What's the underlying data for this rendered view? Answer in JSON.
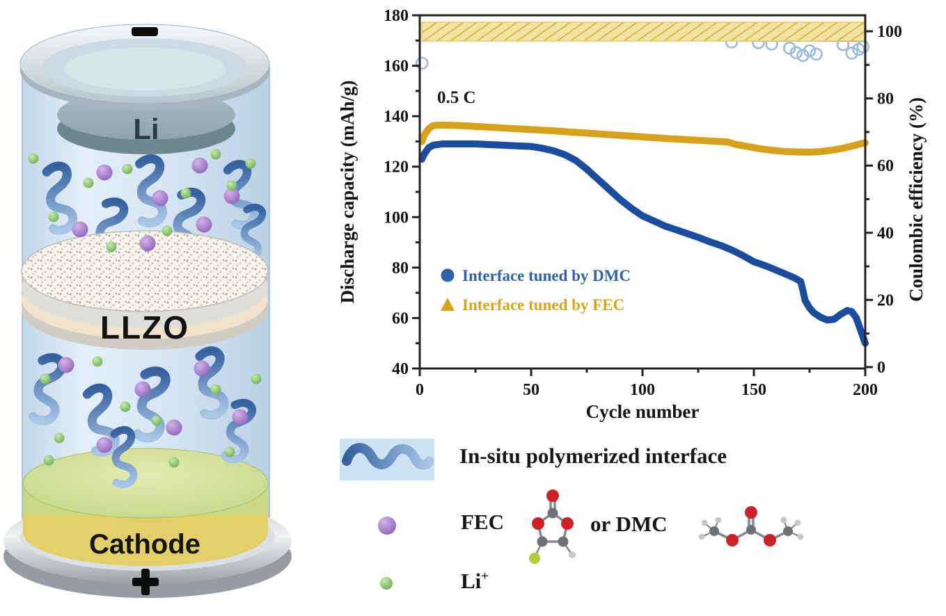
{
  "schematic": {
    "negative_terminal": "−",
    "positive_terminal": "+",
    "anode_label": "Li",
    "electrolyte_label": "LLZO",
    "cathode_label": "Cathode"
  },
  "chart_data": {
    "type": "scatter-line",
    "title": "",
    "xlabel": "Cycle number",
    "ylabel_left": "Discharge capacity (mAh/g)",
    "ylabel_right": "Coulombic efficiency (%)",
    "annotation": "0.5 C",
    "xlim": [
      0,
      200
    ],
    "ylim_left": [
      40,
      180
    ],
    "ylim_right": [
      0,
      100
    ],
    "x_ticks": [
      0,
      50,
      100,
      150,
      200
    ],
    "x_minor_ticks": [
      25,
      75,
      125,
      175
    ],
    "y_ticks_left": [
      40,
      60,
      80,
      100,
      120,
      140,
      160,
      180
    ],
    "y_minor_ticks_left": [
      50,
      70,
      90,
      110,
      130,
      150,
      170
    ],
    "y_ticks_right": [
      0,
      20,
      40,
      60,
      80,
      100
    ],
    "y_minor_ticks_right": [
      10,
      30,
      50,
      70,
      90
    ],
    "grid": false,
    "legend_position": "inside-left-middle",
    "legend": [
      {
        "label": "Interface tuned by DMC",
        "marker": "circle",
        "color": "#2f62a8"
      },
      {
        "label": "Interface tuned by FEC",
        "marker": "triangle",
        "color": "#d7a51c"
      }
    ],
    "series": [
      {
        "name": "Discharge capacity - interface tuned by DMC",
        "axis": "left",
        "color": "#1b4c9e",
        "points": [
          [
            1,
            123
          ],
          [
            2,
            125
          ],
          [
            4,
            127.5
          ],
          [
            6,
            128.5
          ],
          [
            10,
            129
          ],
          [
            15,
            129
          ],
          [
            20,
            129
          ],
          [
            25,
            129
          ],
          [
            30,
            128.8
          ],
          [
            35,
            128.6
          ],
          [
            40,
            128.4
          ],
          [
            45,
            128.2
          ],
          [
            50,
            128
          ],
          [
            55,
            127.3
          ],
          [
            60,
            126.3
          ],
          [
            65,
            124.8
          ],
          [
            70,
            122.5
          ],
          [
            75,
            119
          ],
          [
            80,
            115
          ],
          [
            85,
            111
          ],
          [
            90,
            107
          ],
          [
            95,
            103.5
          ],
          [
            100,
            100.5
          ],
          [
            105,
            98.5
          ],
          [
            110,
            96.5
          ],
          [
            115,
            95
          ],
          [
            120,
            93.5
          ],
          [
            125,
            92
          ],
          [
            130,
            90.3
          ],
          [
            135,
            88.8
          ],
          [
            140,
            87
          ],
          [
            145,
            84.8
          ],
          [
            150,
            82.3
          ],
          [
            155,
            80.8
          ],
          [
            160,
            79
          ],
          [
            164,
            77.5
          ],
          [
            168,
            76
          ],
          [
            171,
            74.5
          ],
          [
            172,
            71
          ],
          [
            173,
            67
          ],
          [
            175,
            64
          ],
          [
            177,
            62
          ],
          [
            180,
            60.3
          ],
          [
            183,
            59.2
          ],
          [
            186,
            59.5
          ],
          [
            189,
            61.5
          ],
          [
            192,
            63
          ],
          [
            194,
            62.5
          ],
          [
            196,
            60
          ],
          [
            198,
            55
          ],
          [
            200,
            50
          ]
        ]
      },
      {
        "name": "Discharge capacity - interface tuned by FEC",
        "axis": "left",
        "color": "#d8a11b",
        "points": [
          [
            1,
            130
          ],
          [
            2,
            132.5
          ],
          [
            4,
            135
          ],
          [
            6,
            136.3
          ],
          [
            10,
            136.5
          ],
          [
            15,
            136.4
          ],
          [
            20,
            136.2
          ],
          [
            30,
            135.7
          ],
          [
            40,
            135.2
          ],
          [
            50,
            134.7
          ],
          [
            60,
            134.2
          ],
          [
            70,
            133.6
          ],
          [
            80,
            133
          ],
          [
            90,
            132.4
          ],
          [
            100,
            131.8
          ],
          [
            110,
            131.2
          ],
          [
            120,
            130.7
          ],
          [
            130,
            130.2
          ],
          [
            138,
            129.8
          ],
          [
            142,
            128.8
          ],
          [
            147,
            128
          ],
          [
            152,
            127.2
          ],
          [
            158,
            126.5
          ],
          [
            164,
            126
          ],
          [
            170,
            125.8
          ],
          [
            175,
            125.7
          ],
          [
            180,
            126
          ],
          [
            185,
            126.5
          ],
          [
            190,
            127.3
          ],
          [
            195,
            128.4
          ],
          [
            200,
            129.5
          ]
        ]
      },
      {
        "name": "Coulombic efficiency - interface tuned by DMC",
        "axis": "right",
        "color": "#49679a",
        "style": "line-with-outlier-circles",
        "points": [
          [
            2,
            97.5
          ],
          [
            6,
            97.6
          ],
          [
            15,
            97.6
          ],
          [
            40,
            97.5
          ],
          [
            70,
            97.5
          ],
          [
            100,
            97.4
          ],
          [
            130,
            97.4
          ],
          [
            150,
            97.3
          ],
          [
            165,
            97.3
          ],
          [
            180,
            97.3
          ],
          [
            200,
            97.2
          ]
        ],
        "outliers": [
          [
            1,
            90.5
          ],
          [
            140,
            96.8
          ],
          [
            152,
            96.6
          ],
          [
            158,
            96.2
          ],
          [
            166,
            95.0
          ],
          [
            169,
            93.6
          ],
          [
            172,
            92.8
          ],
          [
            175,
            94.2
          ],
          [
            178,
            93.2
          ],
          [
            190,
            96.0
          ],
          [
            194,
            93.5
          ],
          [
            197,
            94.6
          ],
          [
            199,
            95.4
          ]
        ]
      },
      {
        "name": "Coulombic efficiency - interface tuned by FEC",
        "axis": "right",
        "color": "#e9cd7d",
        "style": "hatched-band",
        "band_mean": 99.8,
        "points": [
          [
            1,
            99.4
          ],
          [
            25,
            99.8
          ],
          [
            50,
            99.8
          ],
          [
            75,
            99.8
          ],
          [
            100,
            99.8
          ],
          [
            125,
            99.8
          ],
          [
            150,
            99.7
          ],
          [
            175,
            99.8
          ],
          [
            200,
            99.8
          ]
        ]
      }
    ]
  },
  "legend_panel": {
    "row1_label": "In-situ polymerized interface",
    "row2_fec": "FEC",
    "row2_or_dmc": "or DMC",
    "row3_li": "Li",
    "row3_li_sup": "+"
  },
  "icon_colors": {
    "polymer_squiggle": "#4a79be",
    "fec_dmc_sphere": "#9b6fc3",
    "li_ion_sphere": "#7cc465",
    "oxygen_atom": "#cc2127",
    "carbon_atom": "#6d7277",
    "hydrogen_atom": "#c3c7ca",
    "fluorine_atom": "#b4c838"
  }
}
